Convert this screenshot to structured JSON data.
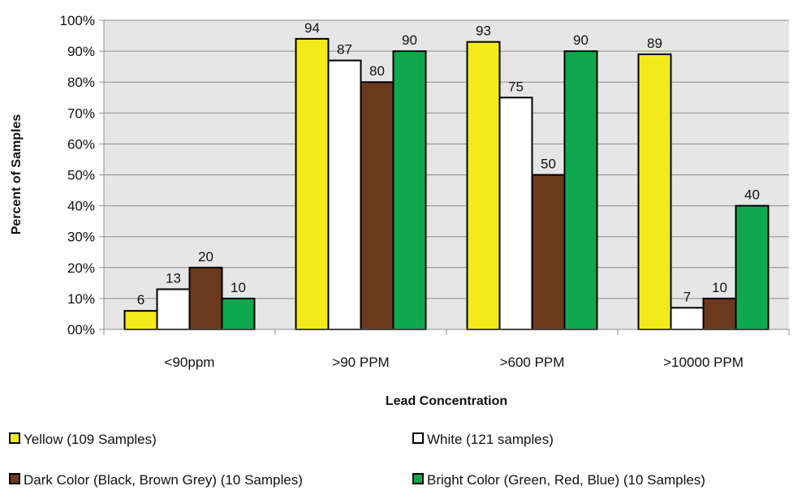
{
  "chart_data": {
    "type": "bar",
    "categories": [
      "<90ppm",
      ">90 PPM",
      ">600 PPM",
      ">10000 PPM"
    ],
    "series": [
      {
        "name": "Yellow (109 Samples)",
        "color": "#F2EA1A",
        "values": [
          6,
          94,
          93,
          89
        ]
      },
      {
        "name": "White (121 samples)",
        "color": "#FFFFFF",
        "values": [
          13,
          87,
          75,
          7
        ]
      },
      {
        "name": "Dark Color (Black, Brown Grey) (10 Samples)",
        "color": "#6B3A1E",
        "values": [
          20,
          80,
          50,
          10
        ]
      },
      {
        "name": "Bright Color (Green, Red, Blue) (10 Samples)",
        "color": "#10A84E",
        "values": [
          10,
          90,
          90,
          40
        ]
      }
    ],
    "xlabel": "Lead Concentration",
    "ylabel": "Percent of Samples",
    "ylim": [
      0,
      100
    ],
    "yticks": [
      "00%",
      "10%",
      "20%",
      "30%",
      "40%",
      "50%",
      "60%",
      "70%",
      "80%",
      "90%",
      "100%"
    ],
    "grid": true,
    "plot_background": "#E6E6E6",
    "legend_position": "bottom"
  }
}
